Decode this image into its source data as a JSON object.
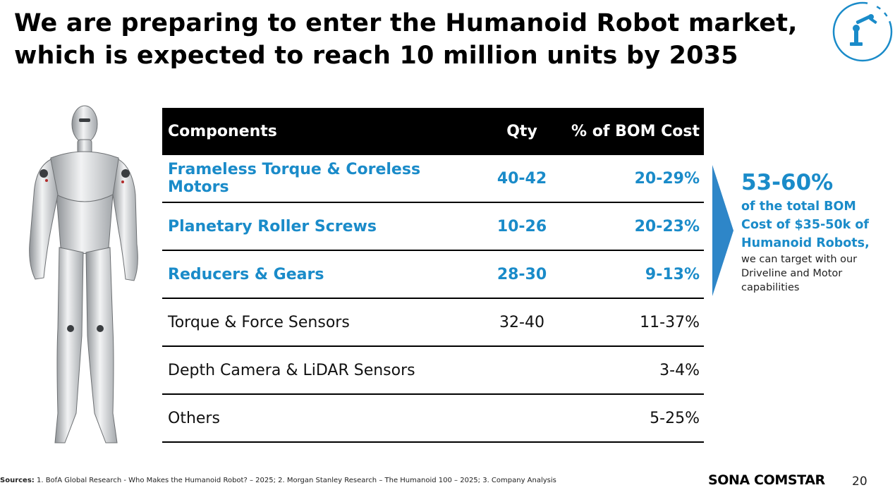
{
  "title": {
    "line1": "We are preparing to enter the Humanoid Robot market,",
    "line2": "which is expected to reach 10 million units by 2035"
  },
  "table": {
    "headers": [
      "Components",
      "Qty",
      "% of BOM Cost"
    ],
    "rows": [
      {
        "component": "Frameless Torque & Coreless Motors",
        "qty": "40-42",
        "bom": "20-29%",
        "highlight": true
      },
      {
        "component": "Planetary Roller Screws",
        "qty": "10-26",
        "bom": "20-23%",
        "highlight": true
      },
      {
        "component": "Reducers & Gears",
        "qty": "28-30",
        "bom": "9-13%",
        "highlight": true
      },
      {
        "component": "Torque & Force Sensors",
        "qty": "32-40",
        "bom": "11-37%",
        "highlight": false
      },
      {
        "component": "Depth Camera & LiDAR Sensors",
        "qty": "",
        "bom": "3-4%",
        "highlight": false
      },
      {
        "component": "Others",
        "qty": "",
        "bom": "5-25%",
        "highlight": false
      }
    ]
  },
  "callout": {
    "headline": "53-60%",
    "line1": "of the total BOM",
    "line2": "Cost of $35-50k of",
    "line3": "Humanoid Robots,",
    "line4": "we can target with our",
    "line5": "Driveline and Motor",
    "line6": "capabilities"
  },
  "footer": {
    "sources_label": "Sources:",
    "sources_text": " 1. BofA Global Research - Who Makes the Humanoid Robot? – 2025; 2. Morgan Stanley Research – The Humanoid 100 – 2025; 3. Company Analysis",
    "brand": "SONA COMSTAR",
    "page": "20"
  },
  "colors": {
    "accent": "#1a8bc9",
    "header_bg": "#000000"
  },
  "icons": {
    "logo": "robot-arm-icon",
    "image": "humanoid-robot-image",
    "arrow": "chevron-arrow-icon"
  }
}
